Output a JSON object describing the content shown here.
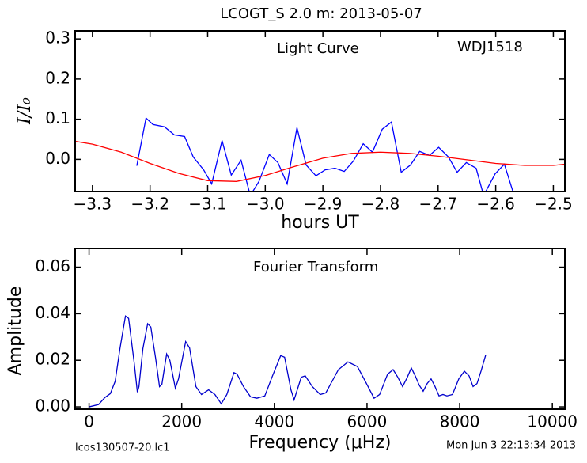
{
  "title": "LCOGT_S 2.0 m:  2013-05-07",
  "footer": {
    "left": "lcos130507-20.lc1",
    "right": "Mon Jun  3 22:13:34 2013"
  },
  "chart_data": [
    {
      "type": "line",
      "title": "Light Curve",
      "annotation": "WDJ1518",
      "xlabel": "hours UT",
      "ylabel": "I/I₀",
      "xlim": [
        -3.33,
        -2.48
      ],
      "ylim": [
        -0.08,
        0.32
      ],
      "xticks": [
        {
          "value": -3.3,
          "label": "−3.3"
        },
        {
          "value": -3.2,
          "label": "−3.2"
        },
        {
          "value": -3.1,
          "label": "−3.1"
        },
        {
          "value": -3.0,
          "label": "−3.0"
        },
        {
          "value": -2.9,
          "label": "−2.9"
        },
        {
          "value": -2.8,
          "label": "−2.8"
        },
        {
          "value": -2.7,
          "label": "−2.7"
        },
        {
          "value": -2.6,
          "label": "−2.6"
        },
        {
          "value": -2.5,
          "label": "−2.5"
        }
      ],
      "yticks": [
        {
          "value": 0,
          "label": "0.0"
        },
        0.1,
        0.2,
        0.3
      ],
      "series": [
        {
          "color": "#0000ff",
          "x": [
            -3.223,
            -3.207,
            -3.195,
            -3.175,
            -3.158,
            -3.14,
            -3.125,
            -3.107,
            -3.093,
            -3.075,
            -3.059,
            -3.042,
            -3.026,
            -3.011,
            -2.993,
            -2.978,
            -2.962,
            -2.945,
            -2.929,
            -2.912,
            -2.896,
            -2.879,
            -2.863,
            -2.847,
            -2.83,
            -2.814,
            -2.797,
            -2.781,
            -2.764,
            -2.748,
            -2.732,
            -2.715,
            -2.699,
            -2.682,
            -2.667,
            -2.651,
            -2.634,
            -2.621,
            -2.601,
            -2.585,
            -2.568
          ],
          "values": [
            -0.016,
            0.103,
            0.087,
            0.081,
            0.061,
            0.057,
            0.006,
            -0.026,
            -0.061,
            0.047,
            -0.039,
            -0.002,
            -0.09,
            -0.055,
            0.012,
            -0.008,
            -0.061,
            0.079,
            -0.014,
            -0.041,
            -0.026,
            -0.022,
            -0.03,
            -0.004,
            0.039,
            0.018,
            0.075,
            0.093,
            -0.032,
            -0.014,
            0.02,
            0.01,
            0.03,
            0.006,
            -0.032,
            -0.008,
            -0.022,
            -0.09,
            -0.036,
            -0.012,
            -0.09
          ]
        },
        {
          "color": "#ff0000",
          "x": [
            -3.33,
            -3.3,
            -3.25,
            -3.2,
            -3.15,
            -3.1,
            -3.05,
            -3.0,
            -2.95,
            -2.9,
            -2.85,
            -2.8,
            -2.75,
            -2.7,
            -2.65,
            -2.6,
            -2.55,
            -2.5,
            -2.48
          ],
          "values": [
            0.045,
            0.038,
            0.018,
            -0.01,
            -0.035,
            -0.053,
            -0.055,
            -0.04,
            -0.018,
            0.003,
            0.015,
            0.018,
            0.015,
            0.008,
            -0.001,
            -0.01,
            -0.015,
            -0.015,
            -0.012
          ]
        }
      ]
    },
    {
      "type": "line",
      "title": "Fourier Transform",
      "xlabel": "Frequency (μHz)",
      "ylabel": "Amplitude",
      "xlim": [
        -300,
        10270
      ],
      "ylim": [
        -0.001,
        0.068
      ],
      "xticks": [
        0,
        2000,
        4000,
        6000,
        8000,
        10000
      ],
      "yticks": [
        {
          "value": 0,
          "label": "0.00"
        },
        {
          "value": 0.02,
          "label": "0.02"
        },
        {
          "value": 0.04,
          "label": "0.04"
        },
        {
          "value": 0.06,
          "label": "0.06"
        }
      ],
      "series": [
        {
          "color": "#0000cc",
          "x": [
            0,
            205,
            342,
            460,
            564,
            667,
            786,
            854,
            974,
            1043,
            1077,
            1162,
            1265,
            1333,
            1436,
            1521,
            1572,
            1675,
            1744,
            1863,
            1931,
            2085,
            2170,
            2307,
            2427,
            2581,
            2717,
            2854,
            2974,
            3128,
            3196,
            3333,
            3486,
            3623,
            3794,
            3948,
            4136,
            4221,
            4358,
            4426,
            4580,
            4666,
            4819,
            4990,
            5110,
            5383,
            5588,
            5793,
            5981,
            6152,
            6272,
            6443,
            6563,
            6665,
            6768,
            6870,
            6956,
            7041,
            7127,
            7212,
            7298,
            7383,
            7468,
            7554,
            7639,
            7725,
            7844,
            7981,
            8101,
            8203,
            8289,
            8374,
            8460,
            8562
          ],
          "values": [
            0,
            0.001,
            0.004,
            0.0057,
            0.011,
            0.025,
            0.039,
            0.038,
            0.019,
            0.0063,
            0.0087,
            0.025,
            0.0357,
            0.0343,
            0.021,
            0.0087,
            0.0097,
            0.0227,
            0.02,
            0.008,
            0.012,
            0.028,
            0.0253,
            0.0087,
            0.0053,
            0.0073,
            0.0053,
            0.0013,
            0.0053,
            0.0147,
            0.014,
            0.0087,
            0.0043,
            0.0037,
            0.0047,
            0.0127,
            0.022,
            0.0213,
            0.0073,
            0.003,
            0.0127,
            0.0133,
            0.0087,
            0.0053,
            0.006,
            0.016,
            0.0193,
            0.0173,
            0.0103,
            0.0037,
            0.0053,
            0.014,
            0.016,
            0.0127,
            0.0087,
            0.0127,
            0.0167,
            0.0133,
            0.0093,
            0.0067,
            0.01,
            0.012,
            0.0087,
            0.0047,
            0.0053,
            0.0047,
            0.0053,
            0.012,
            0.0153,
            0.0133,
            0.0087,
            0.01,
            0.0153,
            0.0223
          ]
        }
      ]
    }
  ]
}
